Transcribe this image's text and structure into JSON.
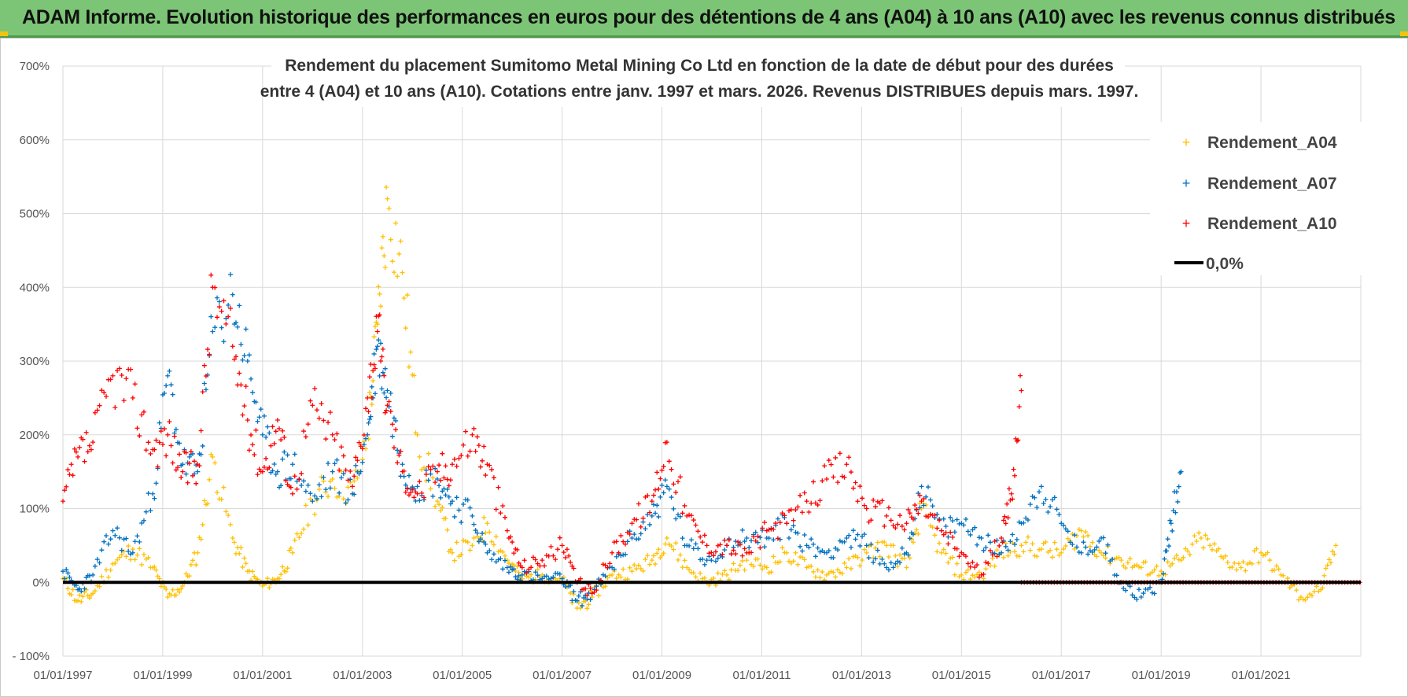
{
  "banner": {
    "title": "ADAM Informe. Evolution historique des performances en euros pour des détentions de 4 ans (A04) à 10 ans (A10) avec les revenus connus distribués"
  },
  "colors": {
    "banner_bg": "#7cc576",
    "a04": "#ffc000",
    "a07": "#0070c0",
    "a10": "#ff0000",
    "zero": "#000000",
    "grid": "#d9d9d9"
  },
  "chart_data": {
    "type": "scatter",
    "title_line1": "Rendement du placement Sumitomo Metal Mining Co Ltd en fonction de la date de début pour des durées",
    "title_line2": "entre 4 (A04) et 10 ans (A10).  Cotations entre janv. 1997 et mars. 2026. Revenus DISTRIBUES depuis mars. 1997.",
    "x_domain": [
      1997.0,
      2023.0
    ],
    "ylim": [
      -100,
      700
    ],
    "y_ticks": [
      -100,
      0,
      100,
      200,
      300,
      400,
      500,
      600,
      700
    ],
    "y_tick_labels": [
      "- 100%",
      "0%",
      "100%",
      "200%",
      "300%",
      "400%",
      "500%",
      "600%",
      "700%"
    ],
    "x_ticks": [
      1997,
      1999,
      2001,
      2003,
      2005,
      2007,
      2009,
      2011,
      2013,
      2015,
      2017,
      2019,
      2021
    ],
    "x_tick_labels": [
      "01/01/1997",
      "01/01/1999",
      "01/01/2001",
      "01/01/2003",
      "01/01/2005",
      "01/01/2007",
      "01/01/2009",
      "01/01/2011",
      "01/01/2013",
      "01/01/2015",
      "01/01/2017",
      "01/01/2019",
      "01/01/2021"
    ],
    "legend_position": "top-right",
    "legend": [
      "Rendement_A04",
      "Rendement_A07",
      "Rendement_A10",
      "0,0%"
    ],
    "series": [
      {
        "name": "Rendement_A04",
        "x": [
          1997.0,
          1997.3,
          1997.6,
          1998.0,
          1998.4,
          1998.8,
          1999.1,
          1999.4,
          1999.7,
          2000.0,
          2000.4,
          2000.7,
          2001.0,
          2001.3,
          2001.6,
          2002.0,
          2002.4,
          2002.8,
          2003.1,
          2003.3,
          2003.5,
          2003.8,
          2004.1,
          2004.5,
          2004.8,
          2005.2,
          2005.5,
          2005.9,
          2006.2,
          2006.6,
          2007.0,
          2007.3,
          2007.6,
          2008.0,
          2008.4,
          2008.8,
          2009.1,
          2009.5,
          2009.9,
          2010.3,
          2010.7,
          2011.1,
          2011.5,
          2011.9,
          2012.3,
          2012.7,
          2013.1,
          2013.5,
          2013.9,
          2014.2,
          2014.6,
          2015.0,
          2015.4,
          2015.8,
          2016.2,
          2016.6,
          2017.0,
          2017.4,
          2017.8,
          2018.2,
          2018.6,
          2019.0,
          2019.4,
          2019.8,
          2020.2,
          2020.6,
          2021.0,
          2021.4,
          2021.8,
          2022.2,
          2022.5
        ],
        "values": [
          5,
          -25,
          -15,
          25,
          45,
          20,
          -20,
          -5,
          40,
          170,
          60,
          15,
          -5,
          5,
          40,
          110,
          140,
          120,
          200,
          350,
          520,
          420,
          200,
          110,
          40,
          50,
          80,
          30,
          5,
          10,
          5,
          -35,
          -20,
          10,
          15,
          30,
          60,
          20,
          0,
          10,
          30,
          20,
          40,
          20,
          10,
          20,
          40,
          50,
          20,
          100,
          40,
          10,
          10,
          40,
          50,
          45,
          40,
          70,
          40,
          30,
          20,
          15,
          30,
          60,
          35,
          20,
          40,
          10,
          -20,
          -10,
          50
        ]
      },
      {
        "name": "Rendement_A07",
        "x": [
          1997.0,
          1997.3,
          1997.6,
          1998.0,
          1998.4,
          1998.8,
          1999.1,
          1999.4,
          1999.7,
          2000.0,
          2000.4,
          2000.7,
          2001.0,
          2001.3,
          2001.6,
          2002.0,
          2002.4,
          2002.8,
          2003.1,
          2003.3,
          2003.5,
          2003.8,
          2004.1,
          2004.5,
          2004.8,
          2005.2,
          2005.5,
          2005.9,
          2006.2,
          2006.6,
          2007.0,
          2007.3,
          2007.6,
          2008.0,
          2008.4,
          2008.8,
          2009.1,
          2009.5,
          2009.9,
          2010.3,
          2010.7,
          2011.1,
          2011.5,
          2011.9,
          2012.3,
          2012.7,
          2013.1,
          2013.5,
          2013.9,
          2014.2,
          2014.6,
          2015.0,
          2015.4,
          2015.8,
          2016.2,
          2016.6,
          2017.0,
          2017.4,
          2017.8,
          2018.2,
          2018.6,
          2019.0,
          2019.2,
          2019.4
        ],
        "values": [
          15,
          -10,
          10,
          70,
          40,
          120,
          280,
          160,
          150,
          340,
          390,
          300,
          200,
          150,
          160,
          110,
          150,
          120,
          200,
          320,
          260,
          160,
          130,
          140,
          110,
          90,
          40,
          20,
          10,
          5,
          5,
          -25,
          -15,
          20,
          60,
          90,
          130,
          50,
          30,
          50,
          60,
          60,
          80,
          50,
          40,
          60,
          50,
          20,
          40,
          130,
          70,
          80,
          60,
          40,
          80,
          130,
          80,
          40,
          60,
          0,
          -20,
          0,
          80,
          150
        ]
      },
      {
        "name": "Rendement_A10",
        "x": [
          1997.0,
          1997.3,
          1997.6,
          1998.0,
          1998.4,
          1998.8,
          1999.1,
          1999.4,
          1999.7,
          2000.0,
          2000.4,
          2000.7,
          2001.0,
          2001.3,
          2001.6,
          2002.0,
          2002.4,
          2002.8,
          2003.1,
          2003.3,
          2003.5,
          2003.8,
          2004.1,
          2004.5,
          2004.8,
          2005.2,
          2005.5,
          2005.9,
          2006.2,
          2006.6,
          2007.0,
          2007.3,
          2007.6,
          2008.0,
          2008.4,
          2008.8,
          2009.1,
          2009.5,
          2009.9,
          2010.3,
          2010.7,
          2011.1,
          2011.5,
          2011.9,
          2012.3,
          2012.7,
          2013.1,
          2013.5,
          2013.9,
          2014.2,
          2014.6,
          2015.0,
          2015.4,
          2015.8,
          2016.0,
          2016.2
        ],
        "values": [
          110,
          170,
          190,
          280,
          250,
          180,
          200,
          150,
          160,
          400,
          320,
          220,
          150,
          220,
          120,
          240,
          200,
          130,
          250,
          340,
          240,
          150,
          120,
          150,
          160,
          200,
          160,
          70,
          20,
          30,
          50,
          0,
          -15,
          40,
          80,
          110,
          190,
          90,
          50,
          50,
          40,
          70,
          80,
          110,
          140,
          160,
          100,
          90,
          80,
          110,
          70,
          40,
          10,
          60,
          120,
          260
        ]
      },
      {
        "name": "0,0%",
        "x": [
          1997.0,
          2023.0
        ],
        "values": [
          0,
          0
        ]
      }
    ],
    "a10_zero_segment": {
      "x_start": 2016.2,
      "x_end": 2023.0,
      "value": 0
    }
  }
}
